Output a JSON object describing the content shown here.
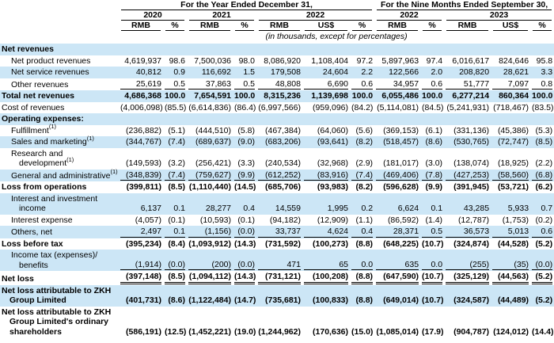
{
  "header": {
    "group1": "For the Year Ended December 31,",
    "group2": "For the Nine Months Ended September 30,",
    "years": [
      "2020",
      "2021",
      "2022",
      "2022",
      "2023"
    ],
    "cols": [
      "RMB",
      "%",
      "RMB",
      "%",
      "RMB",
      "US$",
      "%",
      "RMB",
      "%",
      "RMB",
      "US$",
      "%"
    ],
    "note": "(in thousands, except for percentages)"
  },
  "colors": {
    "row_highlight": "#cce6f6",
    "text": "#000000",
    "rule": "#000000"
  },
  "table": {
    "footnote_marker": "(1)",
    "rows": [
      {
        "label": "Net revenues",
        "indent": 0,
        "bold": true,
        "bg": "blue",
        "values": null
      },
      {
        "label": "Net product revenues",
        "indent": 1,
        "bg": "white",
        "values": [
          "4,619,937",
          "98.6",
          "7,500,036",
          "98.0",
          "8,086,920",
          "1,108,404",
          "97.2",
          "5,897,963",
          "97.4",
          "6,016,617",
          "824,646",
          "95.8"
        ]
      },
      {
        "label": "Net service revenues",
        "indent": 1,
        "bg": "blue",
        "values": [
          "40,812",
          "0.9",
          "116,692",
          "1.5",
          "179,508",
          "24,604",
          "2.2",
          "122,566",
          "2.0",
          "208,820",
          "28,621",
          "3.3"
        ]
      },
      {
        "label": "Other revenues",
        "indent": 1,
        "bg": "white",
        "rule": "u",
        "values": [
          "25,619",
          "0.5",
          "37,863",
          "0.5",
          "48,808",
          "6,690",
          "0.6",
          "34,957",
          "0.6",
          "51,777",
          "7,097",
          "0.8"
        ]
      },
      {
        "label": "Total net revenues",
        "indent": 0,
        "bold": true,
        "bg": "blue",
        "values": [
          "4,686,368",
          "100.0",
          "7,654,591",
          "100.0",
          "8,315,236",
          "1,139,698",
          "100.0",
          "6,055,486",
          "100.0",
          "6,277,214",
          "860,364",
          "100.0"
        ]
      },
      {
        "label": "Cost of revenues",
        "indent": 0,
        "bg": "white",
        "values": [
          "(4,006,098)",
          "(85.5)",
          "(6,614,836)",
          "(86.4)",
          "(6,997,566)",
          "(959,096)",
          "(84.2)",
          "(5,114,081)",
          "(84.5)",
          "(5,241,931)",
          "(718,467)",
          "(83.5)"
        ]
      },
      {
        "label": "Operating expenses:",
        "indent": 0,
        "bold": true,
        "bg": "blue",
        "values": null
      },
      {
        "label": "Fulfillment",
        "sup": true,
        "indent": 1,
        "bg": "white",
        "values": [
          "(236,882)",
          "(5.1)",
          "(444,510)",
          "(5.8)",
          "(467,384)",
          "(64,060)",
          "(5.6)",
          "(369,153)",
          "(6.1)",
          "(331,136)",
          "(45,386)",
          "(5.3)"
        ]
      },
      {
        "label": "Sales and marketing",
        "sup": true,
        "indent": 1,
        "bg": "blue",
        "values": [
          "(344,767)",
          "(7.4)",
          "(689,637)",
          "(9.0)",
          "(683,206)",
          "(93,641)",
          "(8.2)",
          "(518,457)",
          "(8.6)",
          "(530,765)",
          "(72,747)",
          "(8.5)"
        ]
      },
      {
        "label": "Research and\ndevelopment",
        "sup": true,
        "hang": true,
        "indent": 1,
        "bg": "white",
        "values": [
          "(149,593)",
          "(3.2)",
          "(256,421)",
          "(3.3)",
          "(240,534)",
          "(32,968)",
          "(2.9)",
          "(181,017)",
          "(3.0)",
          "(138,074)",
          "(18,925)",
          "(2.2)"
        ]
      },
      {
        "label": "General and administrative",
        "sup": true,
        "indent": 1,
        "bg": "blue",
        "rule": "u",
        "values": [
          "(348,839)",
          "(7.4)",
          "(759,627)",
          "(9.9)",
          "(612,252)",
          "(83,916)",
          "(7.4)",
          "(469,406)",
          "(7.8)",
          "(427,253)",
          "(58,560)",
          "(6.8)"
        ]
      },
      {
        "label": "Loss from operations",
        "indent": 0,
        "bold": true,
        "bg": "white",
        "values": [
          "(399,811)",
          "(8.5)",
          "(1,110,440)",
          "(14.5)",
          "(685,706)",
          "(93,983)",
          "(8.2)",
          "(596,628)",
          "(9.9)",
          "(391,945)",
          "(53,721)",
          "(6.2)"
        ]
      },
      {
        "label": "Interest and investment\nincome",
        "hang": true,
        "indent": 1,
        "bg": "blue",
        "values": [
          "6,137",
          "0.1",
          "28,277",
          "0.4",
          "14,559",
          "1,995",
          "0.2",
          "6,624",
          "0.1",
          "43,285",
          "5,933",
          "0.7"
        ]
      },
      {
        "label": "Interest expense",
        "indent": 1,
        "bg": "white",
        "values": [
          "(4,057)",
          "(0.1)",
          "(10,593)",
          "(0.1)",
          "(94,182)",
          "(12,909)",
          "(1.1)",
          "(86,592)",
          "(1.4)",
          "(12,787)",
          "(1,753)",
          "(0.2)"
        ]
      },
      {
        "label": "Others, net",
        "indent": 1,
        "bg": "blue",
        "rule": "u",
        "values": [
          "2,497",
          "0.1",
          "(1,156)",
          "(0.0)",
          "33,737",
          "4,624",
          "0.4",
          "28,371",
          "0.5",
          "36,573",
          "5,013",
          "0.6"
        ]
      },
      {
        "label": "Loss before tax",
        "indent": 0,
        "bold": true,
        "bg": "white",
        "values": [
          "(395,234)",
          "(8.4)",
          "(1,093,912)",
          "(14.3)",
          "(731,592)",
          "(100,273)",
          "(8.8)",
          "(648,225)",
          "(10.7)",
          "(324,874)",
          "(44,528)",
          "(5.2)"
        ]
      },
      {
        "label": "Income tax (expenses)/\nbenefits",
        "hang": true,
        "indent": 1,
        "bg": "blue",
        "rule": "u",
        "values": [
          "(1,914)",
          "(0.0)",
          "(200)",
          "(0.0)",
          "471",
          "65",
          "0.0",
          "635",
          "0.0",
          "(255)",
          "(35)",
          "(0.0)"
        ]
      },
      {
        "label": "Net loss",
        "indent": 0,
        "bold": true,
        "bg": "white",
        "rule": "uu",
        "values": [
          "(397,148)",
          "(8.5)",
          "(1,094,112)",
          "(14.3)",
          "(731,121)",
          "(100,208)",
          "(8.8)",
          "(647,590)",
          "(10.7)",
          "(325,129)",
          "(44,563)",
          "(5.2)"
        ]
      },
      {
        "label": "Net loss attributable to ZKH\nGroup Limited",
        "hang": true,
        "indent": 0,
        "bold": true,
        "bg": "blue",
        "values": [
          "(401,731)",
          "(8.6)",
          "(1,122,484)",
          "(14.7)",
          "(735,681)",
          "(100,833)",
          "(8.8)",
          "(649,014)",
          "(10.7)",
          "(324,587)",
          "(44,489)",
          "(5.2)"
        ]
      },
      {
        "label": "Net loss attributable to ZKH\nGroup Limited's ordinary\nshareholders",
        "hang": true,
        "indent": 0,
        "bold": true,
        "bg": "white",
        "values": [
          "(586,191)",
          "(12.5)",
          "(1,452,221)",
          "(19.0)",
          "(1,244,962)",
          "(170,636)",
          "(15.0)",
          "(1,085,014)",
          "(17.9)",
          "(904,787)",
          "(124,012)",
          "(14.4)"
        ]
      }
    ]
  }
}
